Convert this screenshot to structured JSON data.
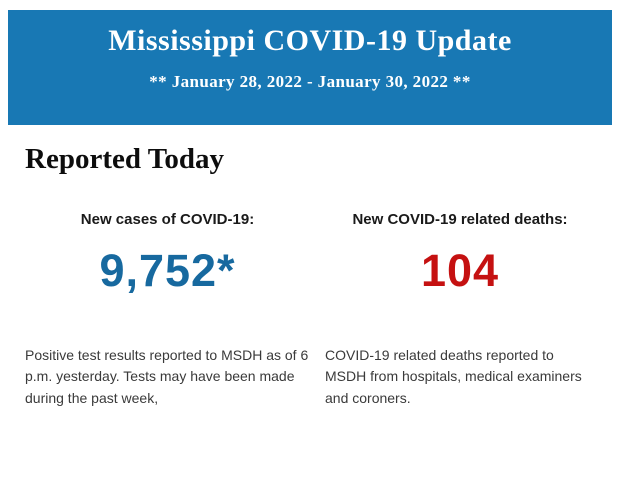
{
  "header": {
    "title": "Mississippi COVID-19 Update",
    "subtitle": "** January 28, 2022 - January 30, 2022 **",
    "background_color": "#1878B4",
    "text_color": "#ffffff"
  },
  "section": {
    "heading": "Reported Today"
  },
  "stats": [
    {
      "label": "New cases of COVID-19:",
      "value": "9,752*",
      "value_color": "#17699F",
      "note": "Positive test results reported to MSDH as of 6 p.m. yesterday. Tests may have been made during the past week,"
    },
    {
      "label": "New COVID-19 related deaths:",
      "value": "104",
      "value_color": "#C51111",
      "note": "COVID-19 related deaths reported to MSDH from hospitals, medical examiners and coroners."
    }
  ]
}
